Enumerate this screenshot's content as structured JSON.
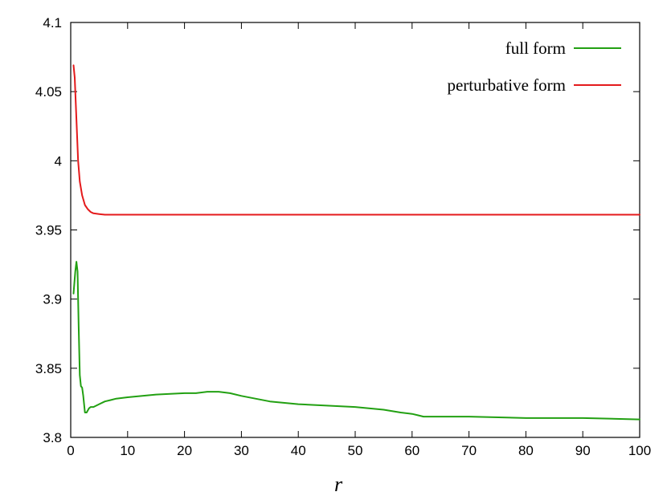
{
  "chart_data": {
    "type": "line",
    "title": "",
    "xlabel": "r",
    "ylabel": "",
    "xlim": [
      0,
      100
    ],
    "ylim": [
      3.8,
      4.1
    ],
    "x_ticks": [
      "0",
      "10",
      "20",
      "30",
      "40",
      "50",
      "60",
      "70",
      "80",
      "90",
      "100"
    ],
    "y_ticks": [
      "3.8",
      "3.85",
      "3.9",
      "3.95",
      "4",
      "4.05",
      "4.1"
    ],
    "x_tick_values": [
      0,
      10,
      20,
      30,
      40,
      50,
      60,
      70,
      80,
      90,
      100
    ],
    "y_tick_values": [
      3.8,
      3.85,
      3.9,
      3.95,
      4.0,
      4.05,
      4.1
    ],
    "grid": false,
    "legend_position": "top-right",
    "series": [
      {
        "name": "full form",
        "color": "#22a012",
        "x": [
          0.5,
          0.8,
          1.0,
          1.2,
          1.4,
          1.6,
          1.8,
          2.0,
          2.2,
          2.5,
          2.8,
          3.2,
          3.5,
          4,
          5,
          6,
          7,
          8,
          10,
          15,
          20,
          22,
          24,
          26,
          28,
          30,
          35,
          40,
          45,
          50,
          55,
          58,
          60,
          61,
          62,
          65,
          70,
          80,
          90,
          100
        ],
        "y": [
          3.904,
          3.92,
          3.927,
          3.92,
          3.88,
          3.845,
          3.837,
          3.836,
          3.83,
          3.818,
          3.818,
          3.821,
          3.822,
          3.822,
          3.824,
          3.826,
          3.827,
          3.828,
          3.829,
          3.831,
          3.832,
          3.832,
          3.833,
          3.833,
          3.832,
          3.83,
          3.826,
          3.824,
          3.823,
          3.822,
          3.82,
          3.818,
          3.817,
          3.816,
          3.815,
          3.815,
          3.815,
          3.814,
          3.814,
          3.813
        ]
      },
      {
        "name": "perturbative form",
        "color": "#e41a1c",
        "x": [
          0.5,
          0.7,
          1.0,
          1.3,
          1.6,
          2.0,
          2.5,
          3.0,
          3.5,
          4,
          5,
          6,
          8,
          10,
          20,
          30,
          40,
          60,
          80,
          100
        ],
        "y": [
          4.069,
          4.06,
          4.03,
          4.0,
          3.985,
          3.975,
          3.968,
          3.965,
          3.963,
          3.962,
          3.9615,
          3.961,
          3.961,
          3.961,
          3.961,
          3.961,
          3.961,
          3.961,
          3.961,
          3.961
        ]
      }
    ]
  }
}
